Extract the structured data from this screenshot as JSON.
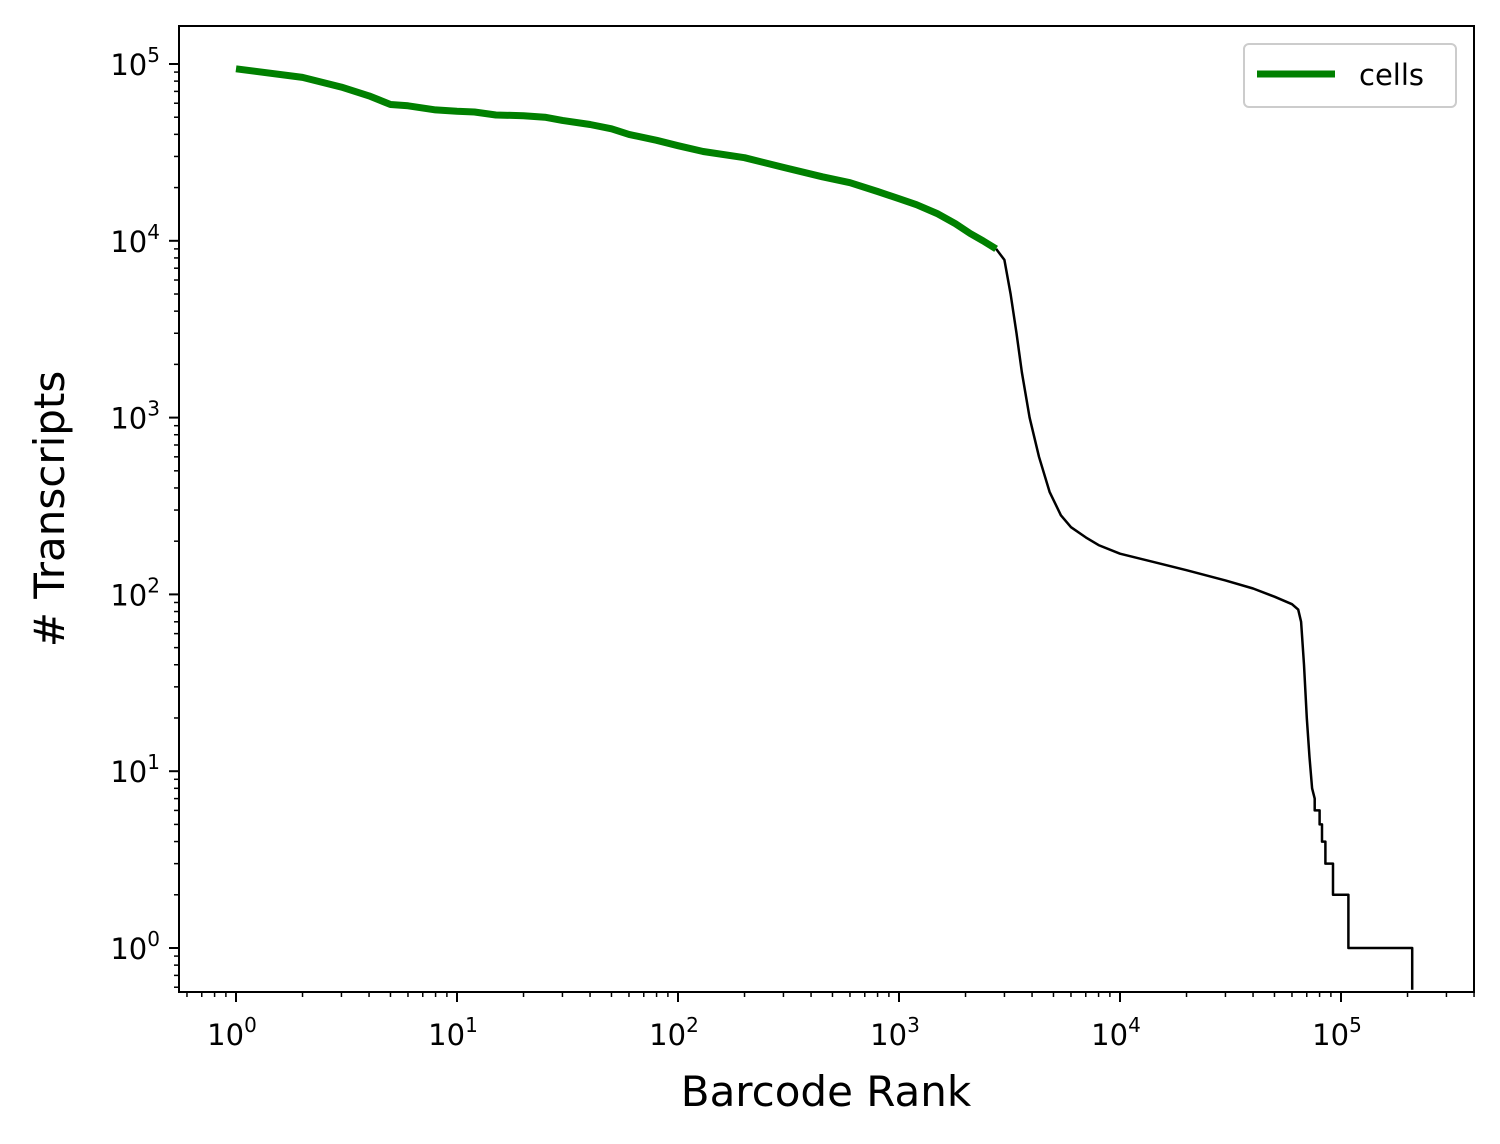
{
  "chart_data": {
    "type": "line",
    "title": "",
    "xlabel": "Barcode Rank",
    "ylabel": "# Transcripts",
    "xscale": "log",
    "yscale": "log",
    "xlim": [
      0.56,
      420000
    ],
    "ylim": [
      0.58,
      170000
    ],
    "grid": false,
    "legend": {
      "placement": "top-right",
      "entries": [
        "cells"
      ]
    },
    "colors": {
      "cells": "#008000",
      "all_barcodes": "#000000"
    },
    "x_ticks": [
      {
        "value": 1,
        "base": "10",
        "exp": "0"
      },
      {
        "value": 10,
        "base": "10",
        "exp": "1"
      },
      {
        "value": 100,
        "base": "10",
        "exp": "2"
      },
      {
        "value": 1000,
        "base": "10",
        "exp": "3"
      },
      {
        "value": 10000,
        "base": "10",
        "exp": "4"
      },
      {
        "value": 100000,
        "base": "10",
        "exp": "5"
      }
    ],
    "y_ticks": [
      {
        "value": 1,
        "base": "10",
        "exp": "0"
      },
      {
        "value": 10,
        "base": "10",
        "exp": "1"
      },
      {
        "value": 100,
        "base": "10",
        "exp": "2"
      },
      {
        "value": 1000,
        "base": "10",
        "exp": "3"
      },
      {
        "value": 10000,
        "base": "10",
        "exp": "4"
      },
      {
        "value": 100000,
        "base": "10",
        "exp": "5"
      }
    ],
    "series": [
      {
        "name": "cells",
        "points": [
          [
            1,
            94000
          ],
          [
            2,
            84000
          ],
          [
            3,
            74000
          ],
          [
            4,
            66000
          ],
          [
            5,
            59000
          ],
          [
            6,
            58000
          ],
          [
            8,
            55000
          ],
          [
            10,
            54000
          ],
          [
            12,
            53500
          ],
          [
            15,
            51500
          ],
          [
            20,
            51000
          ],
          [
            25,
            50000
          ],
          [
            30,
            48000
          ],
          [
            40,
            45500
          ],
          [
            50,
            43000
          ],
          [
            60,
            40000
          ],
          [
            80,
            37000
          ],
          [
            100,
            34500
          ],
          [
            130,
            32000
          ],
          [
            200,
            29500
          ],
          [
            300,
            26000
          ],
          [
            450,
            23000
          ],
          [
            600,
            21300
          ],
          [
            800,
            19000
          ],
          [
            1000,
            17300
          ],
          [
            1200,
            16000
          ],
          [
            1500,
            14200
          ],
          [
            1800,
            12500
          ],
          [
            2100,
            11000
          ],
          [
            2400,
            10000
          ],
          [
            2750,
            9000
          ]
        ]
      },
      {
        "points": [
          [
            2750,
            9000
          ],
          [
            3000,
            7800
          ],
          [
            3200,
            5000
          ],
          [
            3400,
            3000
          ],
          [
            3600,
            1800
          ],
          [
            3900,
            1000
          ],
          [
            4300,
            600
          ],
          [
            4800,
            380
          ],
          [
            5400,
            280
          ],
          [
            6000,
            240
          ],
          [
            7000,
            210
          ],
          [
            8000,
            190
          ],
          [
            10000,
            170
          ],
          [
            15000,
            150
          ],
          [
            20000,
            137
          ],
          [
            30000,
            120
          ],
          [
            40000,
            108
          ],
          [
            50000,
            97
          ],
          [
            60000,
            88
          ],
          [
            64000,
            82
          ],
          [
            66000,
            70
          ],
          [
            68000,
            40
          ],
          [
            70000,
            20
          ],
          [
            72000,
            12
          ],
          [
            74000,
            8
          ],
          [
            76000,
            7
          ],
          [
            76000,
            6
          ],
          [
            80000,
            6
          ],
          [
            80000,
            5
          ],
          [
            82000,
            5
          ],
          [
            82000,
            4
          ],
          [
            85000,
            4
          ],
          [
            85000,
            3
          ],
          [
            92000,
            3
          ],
          [
            92000,
            2
          ],
          [
            108000,
            2
          ],
          [
            108000,
            1
          ],
          [
            210000,
            1
          ],
          [
            210000,
            0.58
          ]
        ]
      }
    ]
  }
}
